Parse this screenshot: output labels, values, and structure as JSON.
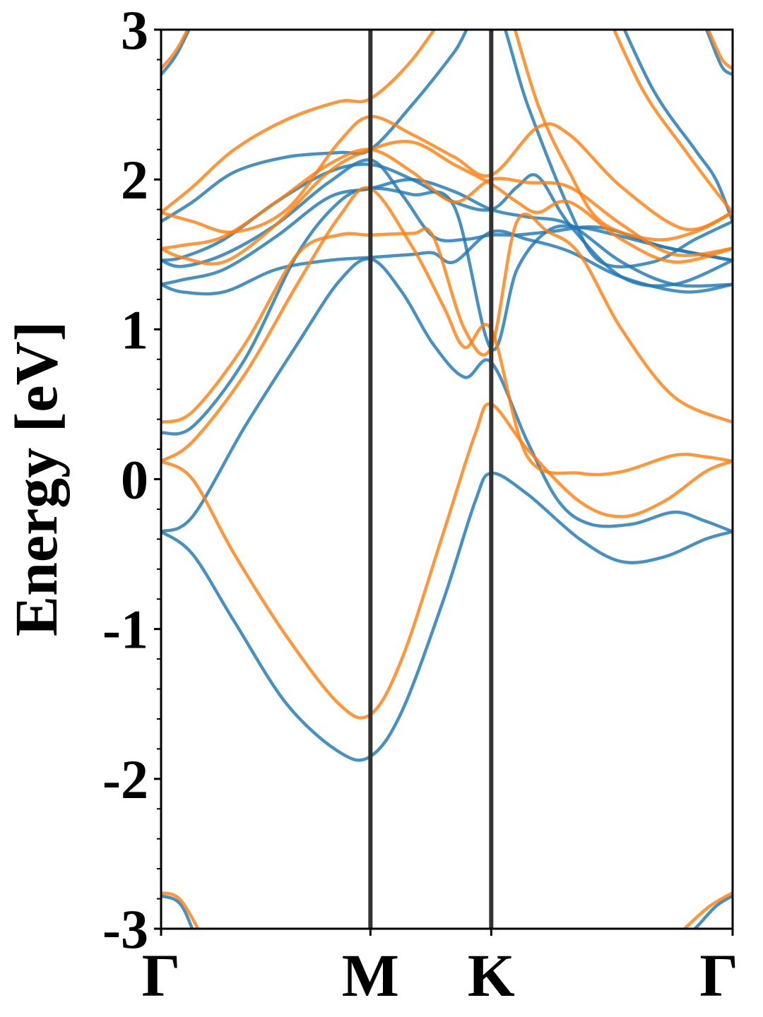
{
  "chart_data": {
    "type": "line",
    "title": "",
    "xlabel": "",
    "ylabel": "Energy [eV]",
    "ylim": [
      -3,
      3
    ],
    "y_ticks": [
      "-3",
      "-2",
      "-1",
      "0",
      "1",
      "2",
      "3"
    ],
    "y_minor_step": 0.2,
    "x_range": [
      0,
      2.73
    ],
    "high_symmetry_points": [
      {
        "label": "Γ",
        "x": 0
      },
      {
        "label": "M",
        "x": 1.0
      },
      {
        "label": "K",
        "x": 1.577
      },
      {
        "label": "Γ",
        "x": 2.73
      }
    ],
    "grid": false,
    "legend": "none",
    "series": [
      {
        "color": "#1f77b4",
        "values": [
          [
            0,
            -0.35
          ],
          [
            0.15,
            -0.5
          ],
          [
            0.35,
            -0.95
          ],
          [
            0.6,
            -1.5
          ],
          [
            0.85,
            -1.82
          ],
          [
            1.0,
            -1.85
          ],
          [
            1.15,
            -1.55
          ],
          [
            1.35,
            -0.8
          ],
          [
            1.5,
            -0.15
          ],
          [
            1.577,
            0.04
          ],
          [
            1.75,
            -0.1
          ],
          [
            2.0,
            -0.4
          ],
          [
            2.2,
            -0.55
          ],
          [
            2.4,
            -0.52
          ],
          [
            2.6,
            -0.4
          ],
          [
            2.73,
            -0.35
          ]
        ]
      },
      {
        "color": "#1f77b4",
        "values": [
          [
            0,
            -0.35
          ],
          [
            0.15,
            -0.25
          ],
          [
            0.4,
            0.35
          ],
          [
            0.65,
            0.9
          ],
          [
            0.85,
            1.32
          ],
          [
            1.0,
            1.47
          ],
          [
            1.15,
            1.25
          ],
          [
            1.3,
            0.9
          ],
          [
            1.45,
            0.68
          ],
          [
            1.577,
            0.78
          ],
          [
            1.75,
            0.25
          ],
          [
            1.9,
            -0.15
          ],
          [
            2.05,
            -0.3
          ],
          [
            2.25,
            -0.3
          ],
          [
            2.45,
            -0.22
          ],
          [
            2.6,
            -0.28
          ],
          [
            2.73,
            -0.35
          ]
        ]
      },
      {
        "color": "#1f77b4",
        "values": [
          [
            0,
            0.31
          ],
          [
            0.15,
            0.35
          ],
          [
            0.4,
            0.8
          ],
          [
            0.65,
            1.5
          ],
          [
            0.85,
            1.85
          ],
          [
            1.0,
            1.94
          ],
          [
            1.2,
            1.9
          ],
          [
            1.4,
            1.82
          ],
          [
            1.577,
            0.87
          ],
          [
            1.7,
            1.4
          ],
          [
            1.85,
            1.66
          ],
          [
            2.0,
            1.68
          ],
          [
            2.2,
            1.62
          ],
          [
            2.4,
            1.55
          ],
          [
            2.73,
            1.46
          ]
        ]
      },
      {
        "color": "#1f77b4",
        "values": [
          [
            0,
            1.3
          ],
          [
            0.1,
            1.25
          ],
          [
            0.3,
            1.25
          ],
          [
            0.55,
            1.4
          ],
          [
            0.8,
            1.46
          ],
          [
            1.0,
            1.48
          ],
          [
            1.2,
            1.5
          ],
          [
            1.3,
            1.51
          ],
          [
            1.4,
            1.45
          ],
          [
            1.577,
            1.65
          ],
          [
            1.75,
            1.6
          ],
          [
            1.95,
            1.52
          ],
          [
            2.2,
            1.35
          ],
          [
            2.5,
            1.25
          ],
          [
            2.73,
            1.3
          ]
        ]
      },
      {
        "color": "#1f77b4",
        "values": [
          [
            0,
            1.3
          ],
          [
            0.1,
            1.33
          ],
          [
            0.3,
            1.4
          ],
          [
            0.55,
            1.62
          ],
          [
            0.8,
            1.88
          ],
          [
            1.0,
            1.94
          ],
          [
            1.2,
            2.0
          ],
          [
            1.4,
            1.92
          ],
          [
            1.577,
            1.8
          ],
          [
            1.75,
            1.75
          ],
          [
            1.95,
            1.7
          ],
          [
            2.2,
            1.45
          ],
          [
            2.45,
            1.3
          ],
          [
            2.73,
            1.3
          ]
        ]
      },
      {
        "color": "#1f77b4",
        "values": [
          [
            0,
            1.46
          ],
          [
            0.1,
            1.42
          ],
          [
            0.3,
            1.5
          ],
          [
            0.55,
            1.7
          ],
          [
            0.8,
            1.98
          ],
          [
            1.0,
            2.13
          ],
          [
            1.15,
            1.9
          ],
          [
            1.3,
            1.62
          ],
          [
            1.45,
            1.6
          ],
          [
            1.577,
            1.63
          ],
          [
            1.7,
            1.63
          ],
          [
            1.85,
            1.65
          ],
          [
            2.1,
            1.68
          ],
          [
            2.4,
            1.55
          ],
          [
            2.73,
            1.46
          ]
        ]
      },
      {
        "color": "#1f77b4",
        "values": [
          [
            0,
            1.46
          ],
          [
            0.1,
            1.48
          ],
          [
            0.3,
            1.6
          ],
          [
            0.55,
            1.85
          ],
          [
            0.8,
            2.05
          ],
          [
            1.0,
            2.1
          ],
          [
            1.2,
            2.0
          ],
          [
            1.4,
            1.85
          ],
          [
            1.577,
            1.8
          ],
          [
            1.7,
            1.95
          ],
          [
            1.8,
            2.02
          ],
          [
            1.95,
            1.7
          ],
          [
            2.2,
            1.35
          ],
          [
            2.45,
            1.3
          ],
          [
            2.73,
            1.46
          ]
        ]
      },
      {
        "color": "#1f77b4",
        "values": [
          [
            0,
            1.72
          ],
          [
            0.15,
            1.85
          ],
          [
            0.35,
            2.05
          ],
          [
            0.6,
            2.15
          ],
          [
            0.85,
            2.18
          ],
          [
            1.0,
            2.2
          ],
          [
            1.2,
            2.5
          ],
          [
            1.4,
            2.85
          ],
          [
            1.577,
            3.2
          ],
          [
            1.75,
            2.5
          ],
          [
            1.95,
            1.8
          ],
          [
            2.1,
            1.45
          ],
          [
            2.35,
            1.45
          ],
          [
            2.55,
            1.6
          ],
          [
            2.73,
            1.72
          ]
        ]
      },
      {
        "color": "#1f77b4",
        "values": [
          [
            0,
            2.7
          ],
          [
            0.08,
            2.85
          ],
          [
            0.2,
            3.2
          ]
        ]
      },
      {
        "color": "#1f77b4",
        "values": [
          [
            2.15,
            3.2
          ],
          [
            2.35,
            2.6
          ],
          [
            2.55,
            2.2
          ],
          [
            2.65,
            2.0
          ],
          [
            2.73,
            1.72
          ]
        ]
      },
      {
        "color": "#1f77b4",
        "values": [
          [
            2.55,
            3.2
          ],
          [
            2.62,
            2.95
          ],
          [
            2.68,
            2.75
          ],
          [
            2.73,
            2.7
          ]
        ]
      },
      {
        "color": "#1f77b4",
        "values": [
          [
            0,
            -2.78
          ],
          [
            0.1,
            -2.85
          ],
          [
            0.2,
            -3.2
          ]
        ]
      },
      {
        "color": "#1f77b4",
        "values": [
          [
            2.4,
            -3.2
          ],
          [
            2.55,
            -3.0
          ],
          [
            2.65,
            -2.85
          ],
          [
            2.73,
            -2.78
          ]
        ]
      },
      {
        "color": "#ff7f0e",
        "values": [
          [
            0,
            0.12
          ],
          [
            0.15,
            0.0
          ],
          [
            0.35,
            -0.5
          ],
          [
            0.6,
            -1.05
          ],
          [
            0.85,
            -1.5
          ],
          [
            1.0,
            -1.57
          ],
          [
            1.15,
            -1.2
          ],
          [
            1.35,
            -0.35
          ],
          [
            1.5,
            0.3
          ],
          [
            1.577,
            0.5
          ],
          [
            1.75,
            0.2
          ],
          [
            2.0,
            -0.15
          ],
          [
            2.2,
            -0.25
          ],
          [
            2.4,
            -0.15
          ],
          [
            2.6,
            0.05
          ],
          [
            2.73,
            0.12
          ]
        ]
      },
      {
        "color": "#ff7f0e",
        "values": [
          [
            0,
            0.12
          ],
          [
            0.15,
            0.25
          ],
          [
            0.4,
            0.7
          ],
          [
            0.65,
            1.3
          ],
          [
            0.85,
            1.75
          ],
          [
            1.0,
            1.94
          ],
          [
            1.2,
            1.55
          ],
          [
            1.35,
            1.15
          ],
          [
            1.45,
            0.88
          ],
          [
            1.577,
            1.0
          ],
          [
            1.75,
            0.15
          ],
          [
            2.0,
            0.04
          ],
          [
            2.2,
            0.05
          ],
          [
            2.45,
            0.16
          ],
          [
            2.6,
            0.15
          ],
          [
            2.73,
            0.12
          ]
        ]
      },
      {
        "color": "#ff7f0e",
        "values": [
          [
            0,
            0.38
          ],
          [
            0.15,
            0.45
          ],
          [
            0.4,
            0.9
          ],
          [
            0.65,
            1.5
          ],
          [
            0.85,
            1.63
          ],
          [
            1.0,
            1.63
          ],
          [
            1.2,
            1.64
          ],
          [
            1.3,
            1.62
          ],
          [
            1.45,
            1.0
          ],
          [
            1.577,
            0.88
          ],
          [
            1.7,
            1.72
          ],
          [
            1.85,
            1.65
          ],
          [
            2.0,
            1.5
          ],
          [
            2.2,
            1.0
          ],
          [
            2.45,
            0.55
          ],
          [
            2.73,
            0.38
          ]
        ]
      },
      {
        "color": "#ff7f0e",
        "values": [
          [
            0,
            1.54
          ],
          [
            0.1,
            1.48
          ],
          [
            0.3,
            1.45
          ],
          [
            0.55,
            1.7
          ],
          [
            0.8,
            2.05
          ],
          [
            1.0,
            2.2
          ],
          [
            1.2,
            2.25
          ],
          [
            1.4,
            2.1
          ],
          [
            1.577,
            1.97
          ],
          [
            1.7,
            1.85
          ],
          [
            1.8,
            1.78
          ],
          [
            1.95,
            1.85
          ],
          [
            2.2,
            1.6
          ],
          [
            2.45,
            1.45
          ],
          [
            2.73,
            1.54
          ]
        ]
      },
      {
        "color": "#ff7f0e",
        "values": [
          [
            0,
            1.54
          ],
          [
            0.1,
            1.56
          ],
          [
            0.3,
            1.62
          ],
          [
            0.55,
            1.85
          ],
          [
            0.8,
            2.1
          ],
          [
            1.0,
            2.2
          ],
          [
            1.2,
            2.05
          ],
          [
            1.4,
            1.85
          ],
          [
            1.577,
            2.0
          ],
          [
            1.75,
            1.98
          ],
          [
            1.95,
            1.95
          ],
          [
            2.2,
            1.7
          ],
          [
            2.45,
            1.5
          ],
          [
            2.73,
            1.54
          ]
        ]
      },
      {
        "color": "#ff7f0e",
        "values": [
          [
            0,
            1.78
          ],
          [
            0.15,
            1.72
          ],
          [
            0.35,
            1.65
          ],
          [
            0.6,
            1.8
          ],
          [
            0.85,
            2.25
          ],
          [
            1.0,
            2.42
          ],
          [
            1.2,
            2.3
          ],
          [
            1.4,
            2.15
          ],
          [
            1.577,
            2.03
          ],
          [
            1.8,
            2.35
          ],
          [
            1.95,
            2.3
          ],
          [
            2.2,
            1.95
          ],
          [
            2.5,
            1.67
          ],
          [
            2.73,
            1.78
          ]
        ]
      },
      {
        "color": "#ff7f0e",
        "values": [
          [
            0,
            1.78
          ],
          [
            0.15,
            1.95
          ],
          [
            0.35,
            2.2
          ],
          [
            0.6,
            2.4
          ],
          [
            0.85,
            2.52
          ],
          [
            1.0,
            2.54
          ],
          [
            1.2,
            2.8
          ],
          [
            1.4,
            3.2
          ]
        ]
      },
      {
        "color": "#ff7f0e",
        "values": [
          [
            1.65,
            3.2
          ],
          [
            1.8,
            2.5
          ],
          [
            1.95,
            2.05
          ],
          [
            2.1,
            1.72
          ],
          [
            2.35,
            1.6
          ],
          [
            2.55,
            1.65
          ],
          [
            2.73,
            1.78
          ]
        ]
      },
      {
        "color": "#ff7f0e",
        "values": [
          [
            0,
            2.74
          ],
          [
            0.08,
            2.88
          ],
          [
            0.2,
            3.2
          ]
        ]
      },
      {
        "color": "#ff7f0e",
        "values": [
          [
            2.1,
            3.2
          ],
          [
            2.3,
            2.6
          ],
          [
            2.5,
            2.2
          ],
          [
            2.65,
            1.92
          ],
          [
            2.73,
            1.78
          ]
        ]
      },
      {
        "color": "#ff7f0e",
        "values": [
          [
            2.55,
            3.2
          ],
          [
            2.62,
            2.98
          ],
          [
            2.68,
            2.8
          ],
          [
            2.73,
            2.74
          ]
        ]
      },
      {
        "color": "#ff7f0e",
        "values": [
          [
            0,
            -2.76
          ],
          [
            0.1,
            -2.82
          ],
          [
            0.25,
            -3.2
          ]
        ]
      },
      {
        "color": "#ff7f0e",
        "values": [
          [
            2.35,
            -3.2
          ],
          [
            2.5,
            -3.0
          ],
          [
            2.62,
            -2.85
          ],
          [
            2.73,
            -2.76
          ]
        ]
      }
    ]
  }
}
